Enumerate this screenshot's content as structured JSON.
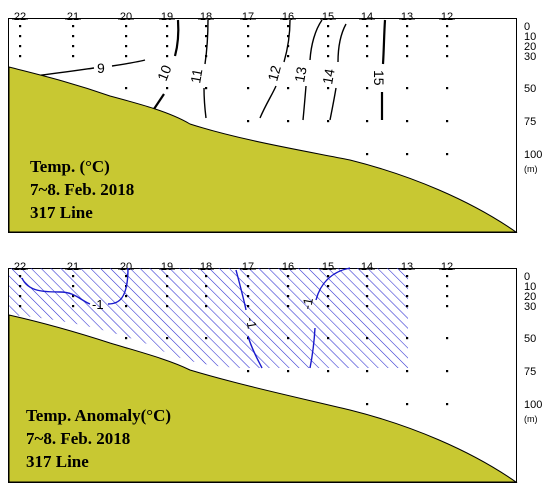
{
  "chart_data": [
    {
      "type": "contour",
      "title_lines": [
        "Temp. (°C)",
        "7~8. Feb. 2018",
        "317 Line"
      ],
      "stations": [
        "22",
        "21",
        "20",
        "19",
        "18",
        "17",
        "16",
        "15",
        "14",
        "13",
        "12"
      ],
      "depth_ticks": [
        "0",
        "10",
        "20",
        "30",
        "50",
        "75",
        "100"
      ],
      "depth_unit": "(m)",
      "contour_labels": [
        "9",
        "10",
        "11",
        "12",
        "13",
        "14",
        "15"
      ],
      "colors": {
        "bottom": "#c8c832",
        "contour": "#000000"
      }
    },
    {
      "type": "contour",
      "title_lines": [
        "Temp. Anomaly(°C)",
        "7~8. Feb. 2018",
        "317 Line"
      ],
      "stations": [
        "22",
        "21",
        "20",
        "19",
        "18",
        "17",
        "16",
        "15",
        "14",
        "13",
        "12"
      ],
      "depth_ticks": [
        "0",
        "10",
        "20",
        "30",
        "50",
        "75",
        "100"
      ],
      "depth_unit": "(m)",
      "contour_labels": [
        "-1",
        "-1",
        "-1"
      ],
      "shaded_region": "below -1",
      "colors": {
        "bottom": "#c8c832",
        "contour": "#1a1acc",
        "hatch": "#2a2ad0"
      }
    }
  ]
}
